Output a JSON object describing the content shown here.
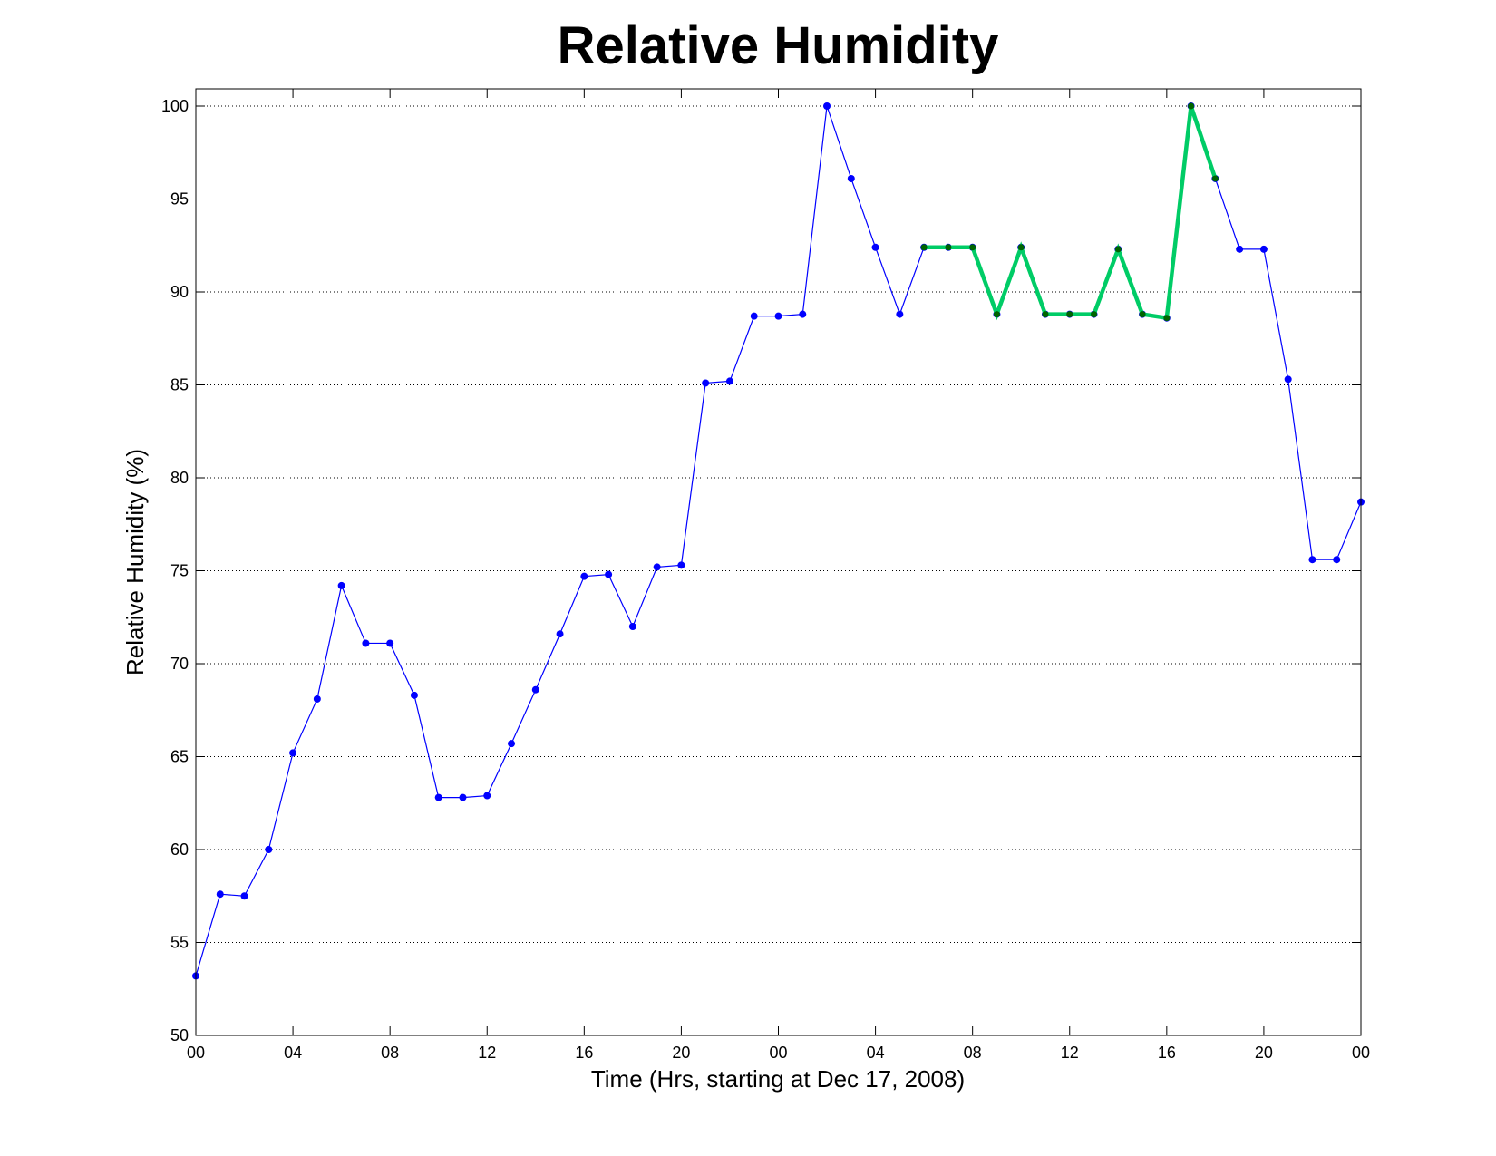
{
  "chart_data": {
    "type": "line",
    "title": "Relative Humidity",
    "xlabel": "Time (Hrs, starting at Dec 17, 2008)",
    "ylabel": "Relative Humidity (%)",
    "xlim": [
      0,
      48
    ],
    "ylim": [
      50,
      100
    ],
    "grid": "y-dotted",
    "x_ticks": [
      0,
      4,
      8,
      12,
      16,
      20,
      24,
      28,
      32,
      36,
      40,
      44,
      48
    ],
    "x_tick_labels": [
      "00",
      "04",
      "08",
      "12",
      "16",
      "20",
      "00",
      "04",
      "08",
      "12",
      "16",
      "20",
      "00"
    ],
    "y_ticks": [
      50,
      55,
      60,
      65,
      70,
      75,
      80,
      85,
      90,
      95,
      100
    ],
    "y_tick_labels": [
      "50",
      "55",
      "60",
      "65",
      "70",
      "75",
      "80",
      "85",
      "90",
      "95",
      "100"
    ],
    "series": [
      {
        "color": "#0000ff",
        "marker_color": "#0000ff",
        "style": "thin",
        "x": [
          0,
          1,
          2,
          3,
          4,
          5,
          6,
          7,
          8,
          9,
          10,
          11,
          12,
          13,
          14,
          15,
          16,
          17,
          18,
          19,
          20,
          21,
          22,
          23,
          24,
          25,
          26,
          27,
          28,
          29,
          30,
          31,
          32,
          33,
          34,
          35,
          36,
          37,
          38,
          39,
          40,
          41,
          42,
          43,
          44,
          45,
          46,
          47,
          48
        ],
        "y": [
          53.2,
          57.6,
          57.5,
          60.0,
          65.2,
          68.1,
          74.2,
          71.1,
          71.1,
          68.3,
          62.8,
          62.8,
          62.9,
          65.7,
          68.6,
          71.6,
          74.7,
          74.8,
          72.0,
          75.2,
          75.3,
          85.1,
          85.2,
          88.7,
          88.7,
          88.8,
          100.0,
          96.1,
          92.4,
          88.8,
          92.4,
          92.4,
          92.4,
          88.8,
          92.4,
          88.8,
          88.8,
          88.8,
          92.3,
          88.8,
          88.6,
          100.0,
          96.1,
          92.3,
          92.3,
          85.3,
          75.6,
          75.6,
          78.7
        ]
      },
      {
        "color": "#00cc66",
        "marker_color": "#006400",
        "style": "thick",
        "x": [
          30,
          31,
          32,
          33,
          34,
          35,
          36,
          37,
          38,
          39,
          40,
          41,
          42
        ],
        "y": [
          92.4,
          92.4,
          92.4,
          88.8,
          92.4,
          88.8,
          88.8,
          88.8,
          92.3,
          88.8,
          88.6,
          100.0,
          96.1
        ]
      }
    ]
  }
}
